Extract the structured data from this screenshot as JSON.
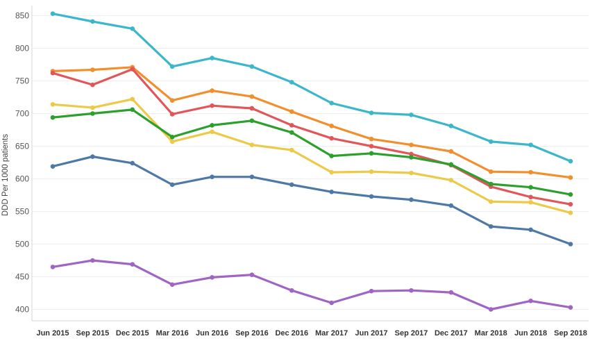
{
  "chart_data": {
    "type": "line",
    "title": "",
    "xlabel": "",
    "ylabel": "DDD Per 1000 patients",
    "ylim": [
      380,
      865
    ],
    "yticks": [
      400,
      450,
      500,
      550,
      600,
      650,
      700,
      750,
      800,
      850
    ],
    "grid": "horizontal light",
    "categories": [
      "Jun 2015",
      "Sep 2015",
      "Dec 2015",
      "Mar 2016",
      "Jun 2016",
      "Sep 2016",
      "Dec 2016",
      "Mar 2017",
      "Jun 2017",
      "Sep 2017",
      "Dec 2017",
      "Mar 2018",
      "Jun 2018",
      "Sep 2018"
    ],
    "series": [
      {
        "color": "#3cb6cb",
        "values": [
          853,
          841,
          830,
          772,
          785,
          772,
          748,
          716,
          701,
          698,
          681,
          657,
          652,
          627
        ]
      },
      {
        "color": "#f28e2b",
        "values": [
          765,
          767,
          771,
          720,
          735,
          726,
          703,
          681,
          661,
          652,
          642,
          611,
          610,
          602
        ]
      },
      {
        "color": "#e15759",
        "values": [
          762,
          744,
          768,
          699,
          712,
          708,
          682,
          662,
          650,
          638,
          621,
          588,
          572,
          561
        ]
      },
      {
        "color": "#edc948",
        "values": [
          714,
          709,
          722,
          657,
          672,
          652,
          644,
          610,
          611,
          609,
          598,
          565,
          564,
          548
        ]
      },
      {
        "color": "#2ca02c",
        "values": [
          694,
          700,
          706,
          664,
          682,
          689,
          671,
          635,
          639,
          633,
          622,
          592,
          587,
          576
        ]
      },
      {
        "color": "#4e79a7",
        "values": [
          619,
          634,
          624,
          591,
          603,
          603,
          591,
          580,
          573,
          568,
          559,
          527,
          522,
          500
        ]
      },
      {
        "color": "#a064c4",
        "values": [
          465,
          475,
          469,
          438,
          449,
          453,
          429,
          410,
          428,
          429,
          426,
          400,
          413,
          403
        ]
      }
    ]
  }
}
